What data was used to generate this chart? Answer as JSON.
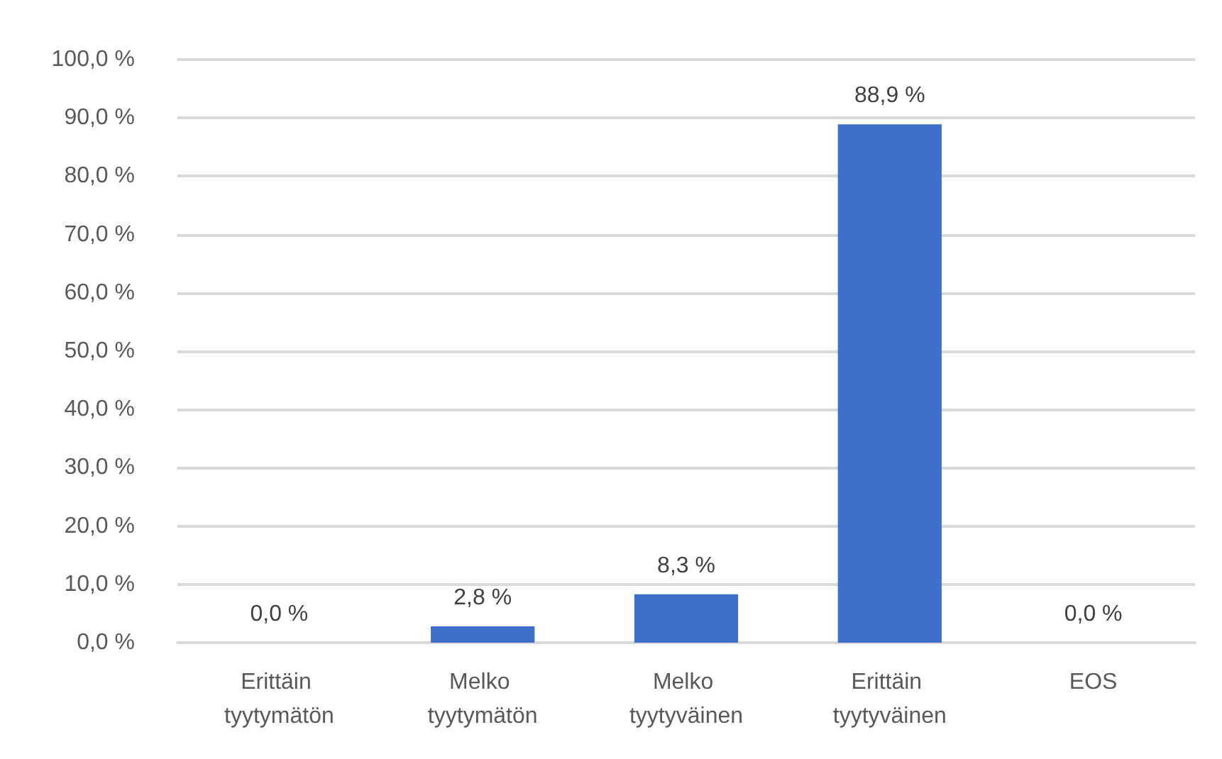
{
  "chart_data": {
    "type": "bar",
    "categories": [
      "Erittäin tyytymätön",
      "Melko tyytymätön",
      "Melko tyytyväinen",
      "Erittäin tyytyväinen",
      "EOS"
    ],
    "values": [
      0.0,
      2.8,
      8.3,
      88.9,
      0.0
    ],
    "value_labels": [
      "0,0 %",
      "2,8 %",
      "8,3 %",
      "88,9 %",
      "0,0 %"
    ],
    "color": "#3f6fca",
    "ylim": [
      0,
      100
    ],
    "yticks": [
      {
        "value": 0,
        "label": "0,0 %"
      },
      {
        "value": 10,
        "label": "10,0 %"
      },
      {
        "value": 20,
        "label": "20,0 %"
      },
      {
        "value": 30,
        "label": "30,0 %"
      },
      {
        "value": 40,
        "label": "40,0 %"
      },
      {
        "value": 50,
        "label": "50,0 %"
      },
      {
        "value": 60,
        "label": "60,0 %"
      },
      {
        "value": 70,
        "label": "70,0 %"
      },
      {
        "value": 80,
        "label": "80,0 %"
      },
      {
        "value": 90,
        "label": "90,0 %"
      },
      {
        "value": 100,
        "label": "100,0 %"
      }
    ],
    "grid": "y"
  }
}
